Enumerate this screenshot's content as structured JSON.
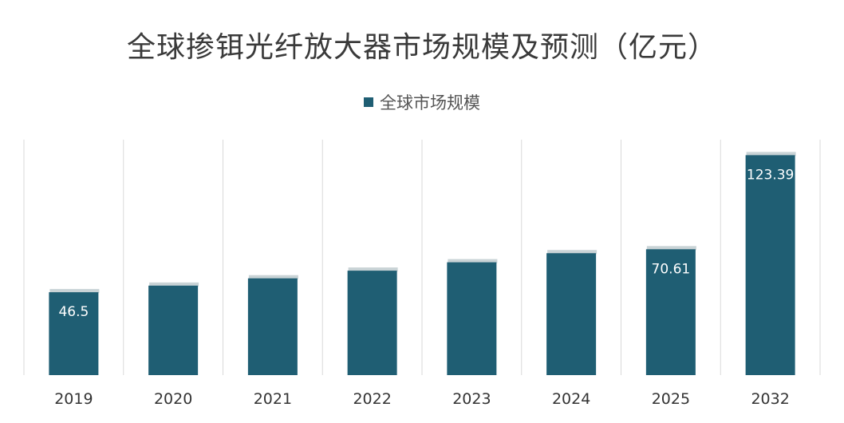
{
  "colors": {
    "bar": "#1f5e73",
    "bar_top": "#c9d3d6",
    "grid": "#d9d9d9",
    "label_light": "#ffffff",
    "axis_text": "#333333"
  },
  "chart_data": {
    "type": "bar",
    "title": "全球掺铒光纤放大器市场规模及预测（亿元）",
    "categories": [
      "2019",
      "2020",
      "2021",
      "2022",
      "2023",
      "2024",
      "2025",
      "2032"
    ],
    "series": [
      {
        "name": "全球市场规模",
        "values": [
          46.5,
          50.2,
          54.3,
          58.6,
          63.3,
          68.4,
          70.61,
          123.39
        ]
      }
    ],
    "data_labels": [
      "46.5",
      "",
      "",
      "",
      "",
      "",
      "70.61",
      "123.39"
    ],
    "ylim": [
      0,
      140
    ],
    "grid": "vertical separators",
    "legend_position": "top-center"
  }
}
